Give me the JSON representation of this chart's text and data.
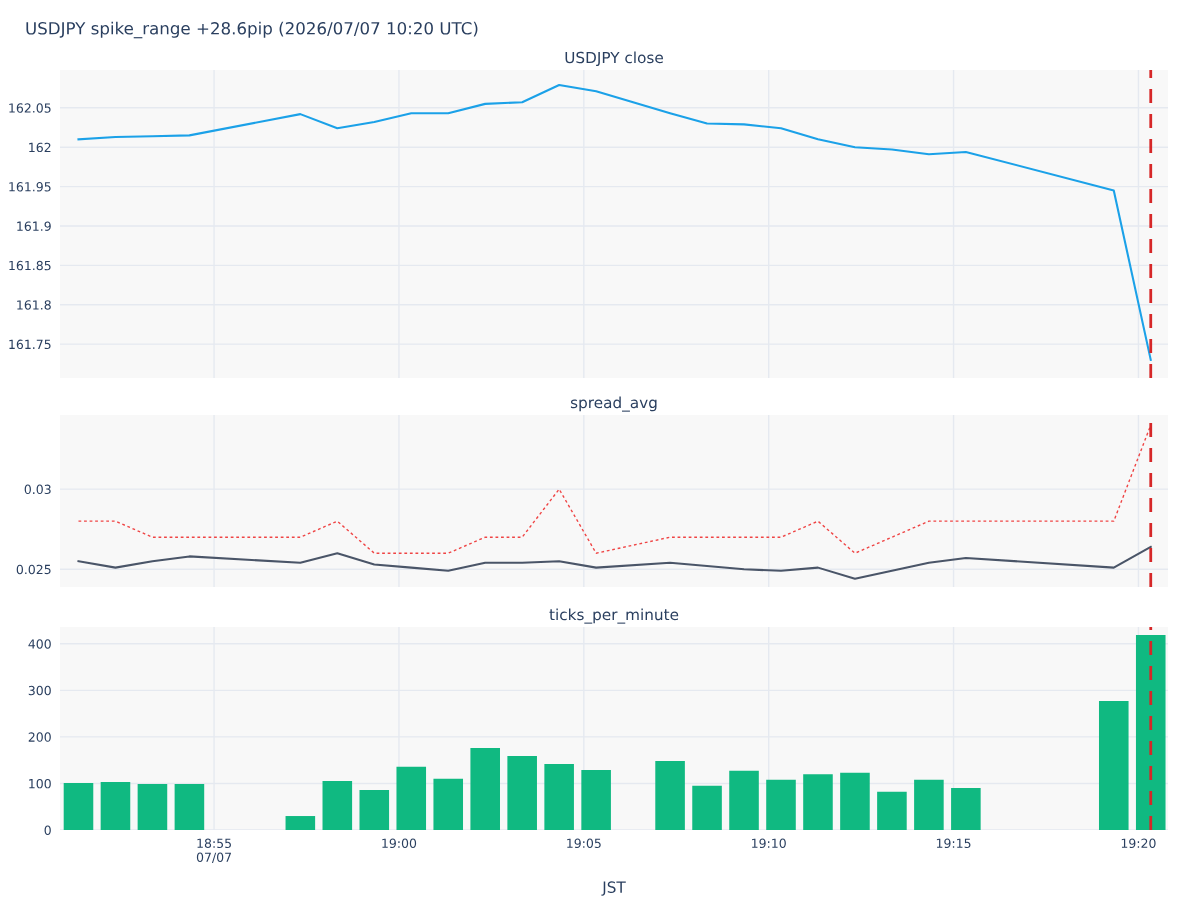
{
  "chart_data": [
    {
      "type": "line",
      "title": "USDJPY spike_range +28.6pip (2026/07/07 10:20 UTC)",
      "subtitle": "USDJPY close",
      "x": [
        "2026-07-07T18:51:20",
        "2026-07-07T18:52:20",
        "2026-07-07T18:53:20",
        "2026-07-07T18:54:20",
        "2026-07-07T18:57:20",
        "2026-07-07T18:58:20",
        "2026-07-07T18:59:20",
        "2026-07-07T19:00:20",
        "2026-07-07T19:01:20",
        "2026-07-07T19:02:20",
        "2026-07-07T19:03:20",
        "2026-07-07T19:04:20",
        "2026-07-07T19:05:20",
        "2026-07-07T19:07:20",
        "2026-07-07T19:08:20",
        "2026-07-07T19:09:20",
        "2026-07-07T19:10:20",
        "2026-07-07T19:11:20",
        "2026-07-07T19:12:20",
        "2026-07-07T19:13:20",
        "2026-07-07T19:14:20",
        "2026-07-07T19:15:20",
        "2026-07-07T19:19:20",
        "2026-07-07T19:20:20"
      ],
      "series": [
        {
          "color": "#1ba1e8",
          "values": [
            162.01,
            162.013,
            162.014,
            162.015,
            162.042,
            162.024,
            162.032,
            162.043,
            162.043,
            162.055,
            162.057,
            162.079,
            162.071,
            162.043,
            162.03,
            162.029,
            162.024,
            162.01,
            162.0,
            161.997,
            161.991,
            161.994,
            161.945,
            161.73
          ]
        }
      ],
      "xlim": [
        "2026-07-07T18:50:50",
        "2026-07-07T19:20:48"
      ],
      "xticks": [
        {
          "value": "2026-07-07T18:55",
          "label": null
        },
        {
          "value": "2026-07-07T19:00",
          "label": null
        },
        {
          "value": "2026-07-07T19:05",
          "label": null
        },
        {
          "value": "2026-07-07T19:10",
          "label": null
        },
        {
          "value": "2026-07-07T19:15",
          "label": null
        },
        {
          "value": "2026-07-07T19:20",
          "label": null
        }
      ],
      "ylim": [
        161.707,
        162.098
      ],
      "yticks": [
        161.75,
        161.8,
        161.85,
        161.9,
        161.95,
        162,
        162.05
      ],
      "ref_lines": [
        {
          "axis": "x",
          "value": "2026-07-07T19:20:20",
          "color": "#d62728",
          "line_style": "dashed"
        }
      ],
      "grid": true,
      "tick_labels": "y",
      "line_style": "solid"
    },
    {
      "type": "line",
      "subtitle": "spread_avg",
      "x": [
        "2026-07-07T18:51:20",
        "2026-07-07T18:52:20",
        "2026-07-07T18:53:20",
        "2026-07-07T18:54:20",
        "2026-07-07T18:57:20",
        "2026-07-07T18:58:20",
        "2026-07-07T18:59:20",
        "2026-07-07T19:00:20",
        "2026-07-07T19:01:20",
        "2026-07-07T19:02:20",
        "2026-07-07T19:03:20",
        "2026-07-07T19:04:20",
        "2026-07-07T19:05:20",
        "2026-07-07T19:07:20",
        "2026-07-07T19:08:20",
        "2026-07-07T19:09:20",
        "2026-07-07T19:10:20",
        "2026-07-07T19:11:20",
        "2026-07-07T19:12:20",
        "2026-07-07T19:13:20",
        "2026-07-07T19:14:20",
        "2026-07-07T19:15:20",
        "2026-07-07T19:19:20",
        "2026-07-07T19:20:20"
      ],
      "series": [
        {
          "color": "#4a5568",
          "line_style": "solid",
          "values": [
            0.0255,
            0.0251,
            0.0255,
            0.0258,
            0.0254,
            0.026,
            0.0253,
            0.0251,
            0.0249,
            0.0254,
            0.0254,
            0.0255,
            0.0251,
            0.0254,
            0.0252,
            0.025,
            0.0249,
            0.0251,
            0.0244,
            0.0249,
            0.0254,
            0.0257,
            0.0251,
            0.0264
          ]
        },
        {
          "color": "#ef4444",
          "line_style": "dotted",
          "values": [
            0.028,
            0.028,
            0.027,
            0.027,
            0.027,
            0.028,
            0.026,
            0.026,
            0.026,
            0.027,
            0.027,
            0.03,
            0.026,
            0.027,
            0.027,
            0.027,
            0.027,
            0.028,
            0.026,
            0.027,
            0.028,
            0.028,
            0.028,
            0.034
          ]
        }
      ],
      "xlim": [
        "2026-07-07T18:50:50",
        "2026-07-07T19:20:48"
      ],
      "xticks": [
        {
          "value": "2026-07-07T18:55",
          "label": null
        },
        {
          "value": "2026-07-07T19:00",
          "label": null
        },
        {
          "value": "2026-07-07T19:05",
          "label": null
        },
        {
          "value": "2026-07-07T19:10",
          "label": null
        },
        {
          "value": "2026-07-07T19:15",
          "label": null
        },
        {
          "value": "2026-07-07T19:20",
          "label": null
        }
      ],
      "ylim": [
        0.02389,
        0.03463
      ],
      "yticks": [
        0.025,
        0.03
      ],
      "ref_lines": [
        {
          "axis": "x",
          "value": "2026-07-07T19:20:20",
          "color": "#d62728",
          "line_style": "dashed"
        }
      ],
      "grid": true,
      "tick_labels": "y"
    },
    {
      "type": "bar",
      "subtitle": "ticks_per_minute",
      "xlabel": "JST",
      "x": [
        "2026-07-07T18:51:20",
        "2026-07-07T18:52:20",
        "2026-07-07T18:53:20",
        "2026-07-07T18:54:20",
        "2026-07-07T18:57:20",
        "2026-07-07T18:58:20",
        "2026-07-07T18:59:20",
        "2026-07-07T19:00:20",
        "2026-07-07T19:01:20",
        "2026-07-07T19:02:20",
        "2026-07-07T19:03:20",
        "2026-07-07T19:04:20",
        "2026-07-07T19:05:20",
        "2026-07-07T19:07:20",
        "2026-07-07T19:08:20",
        "2026-07-07T19:09:20",
        "2026-07-07T19:10:20",
        "2026-07-07T19:11:20",
        "2026-07-07T19:12:20",
        "2026-07-07T19:13:20",
        "2026-07-07T19:14:20",
        "2026-07-07T19:15:20",
        "2026-07-07T19:19:20",
        "2026-07-07T19:20:20"
      ],
      "series": [
        {
          "color": "#10b981",
          "values": [
            101,
            103,
            99,
            99,
            30,
            105,
            86,
            136,
            110,
            176,
            159,
            142,
            129,
            148,
            95,
            127,
            108,
            120,
            123,
            82,
            108,
            90,
            277,
            419
          ]
        }
      ],
      "xlim": [
        "2026-07-07T18:50:50",
        "2026-07-07T19:20:48"
      ],
      "xticks": [
        {
          "value": "2026-07-07T18:55",
          "label": "18:55\n07/07"
        },
        {
          "value": "2026-07-07T19:00",
          "label": "19:00"
        },
        {
          "value": "2026-07-07T19:05",
          "label": "19:05"
        },
        {
          "value": "2026-07-07T19:10",
          "label": "19:10"
        },
        {
          "value": "2026-07-07T19:15",
          "label": "19:15"
        },
        {
          "value": "2026-07-07T19:20",
          "label": "19:20"
        }
      ],
      "ylim": [
        0,
        436
      ],
      "yticks": [
        0,
        100,
        200,
        300,
        400
      ],
      "ref_lines": [
        {
          "axis": "x",
          "value": "2026-07-07T19:20:20",
          "color": "#d62728",
          "line_style": "dashed"
        }
      ],
      "grid": true
    }
  ]
}
